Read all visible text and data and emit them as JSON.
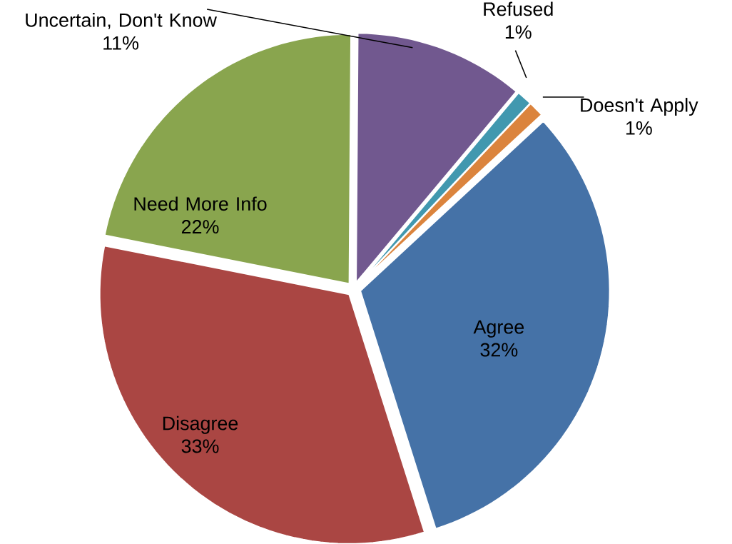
{
  "chart_data": {
    "type": "pie",
    "categories": [
      "Agree",
      "Disagree",
      "Need More Info",
      "Uncertain, Don't Know",
      "Refused",
      "Doesn't Apply"
    ],
    "values": [
      32,
      33,
      22,
      11,
      1,
      1
    ],
    "value_labels": [
      "32%",
      "33%",
      "22%",
      "11%",
      "1%",
      "1%"
    ],
    "colors": [
      "#4572a7",
      "#aa4643",
      "#89a54e",
      "#71588f",
      "#4198af",
      "#db843d"
    ]
  }
}
